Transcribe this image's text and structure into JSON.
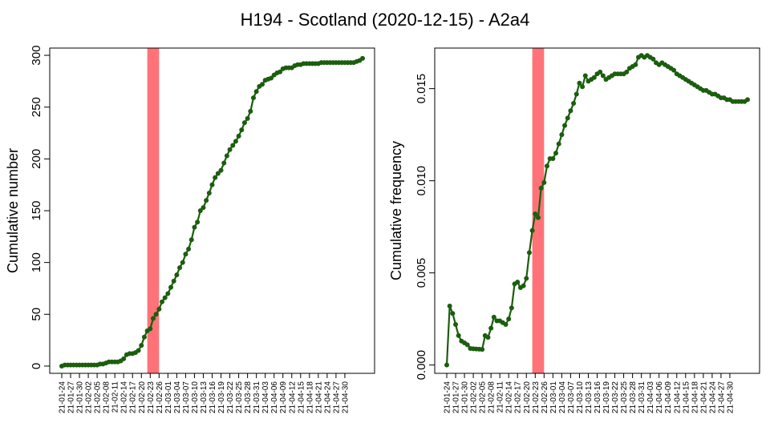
{
  "title": "H194 - Scotland (2020-12-15) - A2a4",
  "colors": {
    "line": "#1b5e0e",
    "point": "#1b5e0e",
    "highlight": "#ff7378",
    "frame": "#000000"
  },
  "chart_data": [
    {
      "type": "line",
      "ylabel": "Cumulative number",
      "xlabel": "",
      "ylim": [
        -7,
        307
      ],
      "yticks": [
        0,
        50,
        100,
        150,
        200,
        250,
        300
      ],
      "ytick_labels": [
        "0",
        "50",
        "100",
        "150",
        "200",
        "250",
        "300"
      ],
      "x_tick_labels": [
        "21-01-24",
        "21-01-27",
        "21-01-30",
        "21-02-02",
        "21-02-05",
        "21-02-08",
        "21-02-11",
        "21-02-14",
        "21-02-17",
        "21-02-20",
        "21-02-23",
        "21-02-26",
        "21-03-01",
        "21-03-04",
        "21-03-07",
        "21-03-10",
        "21-03-13",
        "21-03-16",
        "21-03-19",
        "21-03-22",
        "21-03-25",
        "21-03-28",
        "21-03-31",
        "21-04-03",
        "21-04-06",
        "21-04-09",
        "21-04-12",
        "21-04-15",
        "21-04-18",
        "21-04-21",
        "21-04-24",
        "21-04-27",
        "21-04-30"
      ],
      "highlight_span": [
        "21-02-22",
        "21-02-26"
      ],
      "series": [
        {
          "values": [
            0,
            1,
            1,
            1,
            1,
            1,
            1,
            1,
            1,
            1,
            1,
            1,
            1,
            2,
            2,
            3,
            4,
            4,
            4,
            4,
            5,
            7,
            11,
            12,
            12,
            13,
            15,
            20,
            28,
            34,
            36,
            46,
            50,
            55,
            62,
            66,
            70,
            76,
            82,
            88,
            95,
            100,
            108,
            113,
            122,
            134,
            139,
            150,
            153,
            160,
            167,
            175,
            182,
            186,
            189,
            196,
            203,
            209,
            213,
            217,
            222,
            228,
            235,
            239,
            246,
            259,
            265,
            270,
            272,
            276,
            277,
            278,
            281,
            283,
            284,
            287,
            288,
            288,
            288,
            290,
            291,
            291,
            292,
            292,
            292,
            292,
            292,
            292,
            293,
            293,
            293,
            293,
            293,
            293,
            293,
            293,
            293,
            293,
            293,
            293,
            294,
            295,
            297
          ]
        }
      ]
    },
    {
      "type": "line",
      "ylabel": "Cumulative frequency",
      "xlabel": "",
      "ylim": [
        -0.00045,
        0.0172
      ],
      "yticks": [
        0,
        0.005,
        0.01,
        0.015
      ],
      "ytick_labels": [
        "0.000",
        "0.005",
        "0.010",
        "0.015"
      ],
      "x_tick_labels": [
        "21-01-24",
        "21-01-27",
        "21-01-30",
        "21-02-02",
        "21-02-05",
        "21-02-08",
        "21-02-11",
        "21-02-14",
        "21-02-17",
        "21-02-20",
        "21-02-23",
        "21-02-26",
        "21-03-01",
        "21-03-04",
        "21-03-07",
        "21-03-10",
        "21-03-13",
        "21-03-16",
        "21-03-19",
        "21-03-22",
        "21-03-25",
        "21-03-28",
        "21-03-31",
        "21-04-03",
        "21-04-06",
        "21-04-09",
        "21-04-12",
        "21-04-15",
        "21-04-18",
        "21-04-21",
        "21-04-24",
        "21-04-27",
        "21-04-30"
      ],
      "highlight_span": [
        "21-02-22",
        "21-02-26"
      ],
      "series": [
        {
          "values": [
            0,
            0.0032,
            0.0028,
            0.0022,
            0.0016,
            0.0013,
            0.0012,
            0.0011,
            0.0009,
            0.00088,
            0.00087,
            0.00086,
            0.00085,
            0.0016,
            0.0015,
            0.002,
            0.0026,
            0.0024,
            0.0024,
            0.0023,
            0.0022,
            0.0025,
            0.0031,
            0.0044,
            0.0045,
            0.0042,
            0.0043,
            0.0047,
            0.0061,
            0.0073,
            0.0082,
            0.008,
            0.0096,
            0.0099,
            0.0108,
            0.0112,
            0.0112,
            0.0115,
            0.012,
            0.0125,
            0.013,
            0.0134,
            0.0138,
            0.0142,
            0.0147,
            0.0153,
            0.0151,
            0.0157,
            0.0154,
            0.0155,
            0.0156,
            0.0158,
            0.0159,
            0.0157,
            0.0155,
            0.0156,
            0.0157,
            0.0158,
            0.0158,
            0.0158,
            0.0158,
            0.0159,
            0.0161,
            0.0162,
            0.0163,
            0.0167,
            0.0168,
            0.0167,
            0.0168,
            0.0167,
            0.0166,
            0.0164,
            0.0163,
            0.0164,
            0.0163,
            0.0162,
            0.0161,
            0.016,
            0.0158,
            0.0157,
            0.0156,
            0.0155,
            0.0154,
            0.0153,
            0.0152,
            0.0151,
            0.015,
            0.0149,
            0.0149,
            0.0148,
            0.0147,
            0.0147,
            0.0146,
            0.0145,
            0.0145,
            0.0144,
            0.0144,
            0.0143,
            0.0143,
            0.0143,
            0.0143,
            0.0143,
            0.0144
          ]
        }
      ]
    }
  ]
}
